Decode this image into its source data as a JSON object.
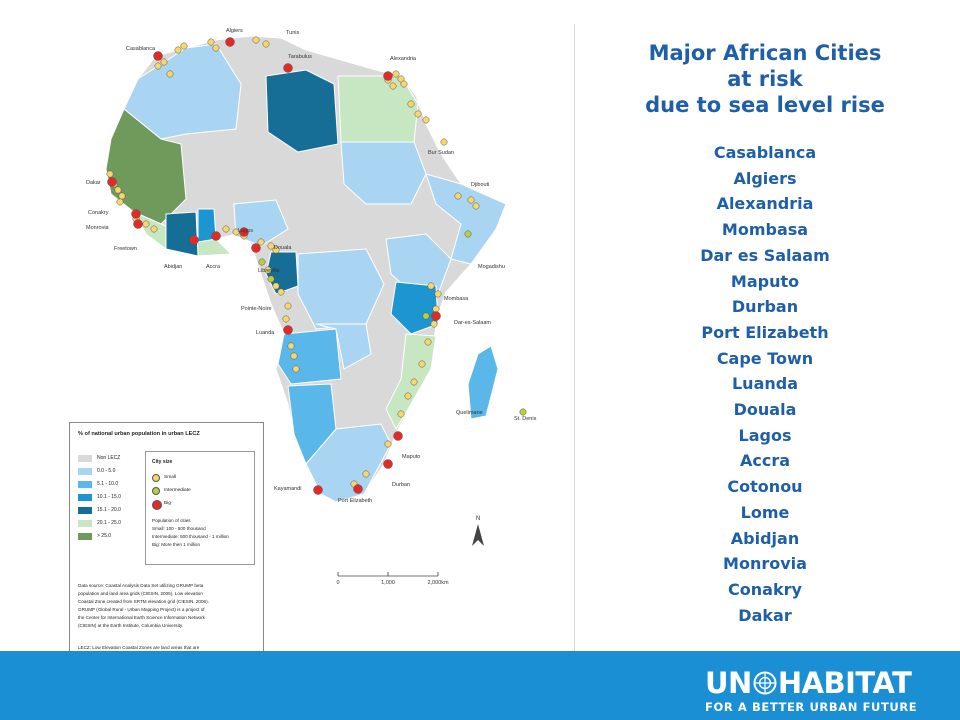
{
  "slide": {
    "title_lines": [
      "Major African Cities",
      "at risk",
      "due to sea level rise"
    ],
    "cities": [
      "Casablanca",
      "Algiers",
      "Alexandria",
      "Mombasa",
      "Dar es Salaam",
      "Maputo",
      "Durban",
      "Port Elizabeth",
      "Cape Town",
      "Luanda",
      "Douala",
      "Lagos",
      "Accra",
      "Cotonou",
      "Lome",
      "Abidjan",
      "Monrovia",
      "Conakry",
      "Dakar"
    ]
  },
  "map": {
    "city_labels": [
      "Algiers",
      "Tunis",
      "Casablanca",
      "Tarabulus",
      "Alexandria",
      "Bur Sudan",
      "Djibouti",
      "Dakar",
      "Conakry",
      "Monrovia",
      "Freetown",
      "Abidjan",
      "Accra",
      "Lagos",
      "Douala",
      "Libreville",
      "Mogadishu",
      "Mombasa",
      "Dar-es-Salaam",
      "Pointe-Noire",
      "Luanda",
      "Quelimane",
      "St. Denis",
      "Maputo",
      "Durban",
      "Kayamandi",
      "Port Elizabeth"
    ],
    "scale": {
      "ticks": [
        "0",
        "1,000",
        "2,000km"
      ]
    },
    "north_label": "N",
    "colors": {
      "non_lecz": "#d9d9d9",
      "c0_5": "#a9d4f2",
      "c5_10": "#59b7ea",
      "c10_15": "#1d95d0",
      "c15_20": "#166e96",
      "c20_25": "#c7e6c2",
      "c25": "#6f9a5c",
      "small_city": "#f7d66a",
      "intermediate_city": "#b8cf3e",
      "big_city": "#e02b2b"
    }
  },
  "legend": {
    "title": "% of national urban population in urban LECZ",
    "classes": [
      "Non LECZ",
      "0.0 - 5.0",
      "5.1 - 10.0",
      "10.1 - 15.0",
      "15.1 - 20.0",
      "20.1 - 25.0",
      "> 25.0"
    ],
    "city_size": {
      "title": "City size",
      "items": [
        "Small",
        "Intermediate",
        "Big"
      ],
      "pop_title": "Population of cities",
      "pop_lines": [
        "Small: 100 - 500 thousand",
        "Intermediate: 500 thousand - 1 million",
        "Big: More then 1 million"
      ]
    },
    "source_lines": [
      "Data source: Coastal Analysis Data Set utilizing GRUMP beta",
      "population and land area grids (CIESIN, 2005), Low elevation",
      "Coastal Zone created from SRTM elevation grid (CIESIN, 2006).",
      "GRUMP (Global Rural - Urban Mapping Project) is a project of",
      "the Center for International Earth Science Information Network",
      "(CIESIN) at the Earth Institute, Columbia University."
    ],
    "lecz_lines": [
      "LECZ: Low Elevation Coastal Zones are land areas that are",
      "contiguous with the coast and ten metres or less in elevation."
    ],
    "grid_note": "All grids 1km resolution."
  },
  "footer": {
    "brand_left": "UN",
    "brand_right": "HABITAT",
    "tagline": "FOR A BETTER URBAN FUTURE",
    "color": "#1b8fd3"
  }
}
